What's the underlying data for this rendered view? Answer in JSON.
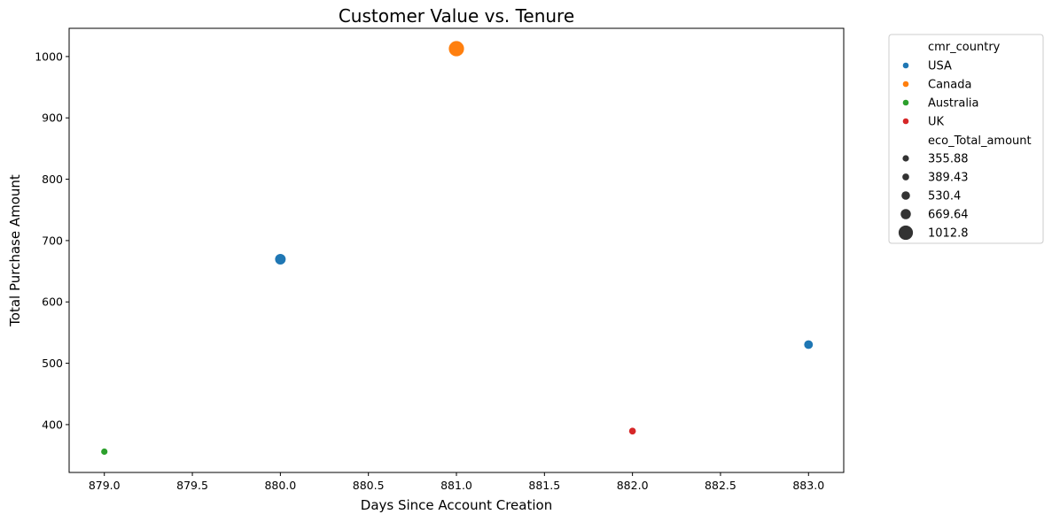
{
  "chart_data": {
    "type": "scatter",
    "title": "Customer Value vs. Tenure",
    "xlabel": "Days Since Account Creation",
    "ylabel": "Total Purchase Amount",
    "xlim": [
      878.8,
      883.2
    ],
    "ylim": [
      322,
      1046
    ],
    "xticks": [
      879.0,
      879.5,
      880.0,
      880.5,
      881.0,
      881.5,
      882.0,
      882.5,
      883.0
    ],
    "xtick_labels": [
      "879.0",
      "879.5",
      "880.0",
      "880.5",
      "881.0",
      "881.5",
      "882.0",
      "882.5",
      "883.0"
    ],
    "yticks": [
      400,
      500,
      600,
      700,
      800,
      900,
      1000
    ],
    "ytick_labels": [
      "400",
      "500",
      "600",
      "700",
      "800",
      "900",
      "1000"
    ],
    "grid": false,
    "legend_position": "outside-right",
    "hue_field": "cmr_country",
    "size_field": "eco_Total_amount",
    "hue_legend": [
      {
        "label": "USA",
        "color": "#1f77b4"
      },
      {
        "label": "Canada",
        "color": "#ff7f0e"
      },
      {
        "label": "Australia",
        "color": "#2ca02c"
      },
      {
        "label": "UK",
        "color": "#d62728"
      }
    ],
    "size_legend": [
      {
        "label": "355.88",
        "value": 355.88
      },
      {
        "label": "389.43",
        "value": 389.43
      },
      {
        "label": "530.4",
        "value": 530.4
      },
      {
        "label": "669.64",
        "value": 669.64
      },
      {
        "label": "1012.8",
        "value": 1012.8
      }
    ],
    "points": [
      {
        "x": 879,
        "y": 355.88,
        "country": "Australia",
        "size": 355.88
      },
      {
        "x": 880,
        "y": 669.64,
        "country": "USA",
        "size": 669.64
      },
      {
        "x": 881,
        "y": 1012.8,
        "country": "Canada",
        "size": 1012.8
      },
      {
        "x": 882,
        "y": 389.43,
        "country": "UK",
        "size": 389.43
      },
      {
        "x": 883,
        "y": 530.4,
        "country": "USA",
        "size": 530.4
      }
    ]
  }
}
